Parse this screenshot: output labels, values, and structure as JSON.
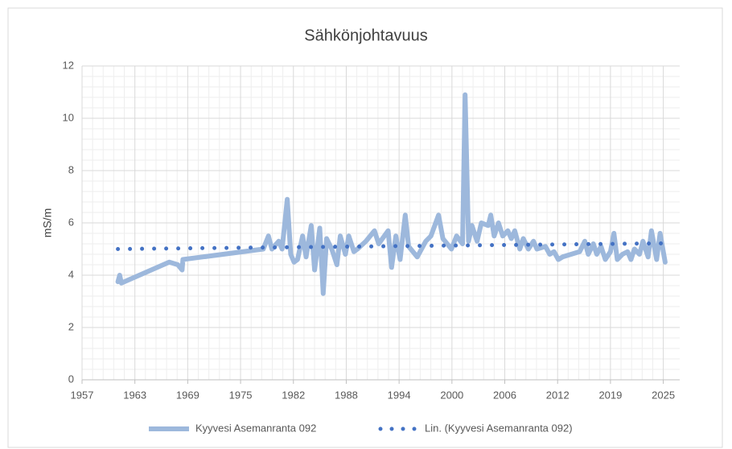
{
  "chart_data": {
    "type": "line",
    "title": "Sähkönjohtavuus",
    "y_label": "mS/m",
    "xlim": [
      1956.8,
      2026.7
    ],
    "ylim": [
      0,
      12
    ],
    "xticks": [
      {
        "value": 1956.8,
        "label": "1957"
      },
      {
        "value": 1962.98,
        "label": "1963"
      },
      {
        "value": 1969.16,
        "label": "1969"
      },
      {
        "value": 1975.34,
        "label": "1975"
      },
      {
        "value": 1981.52,
        "label": "1982"
      },
      {
        "value": 1987.7,
        "label": "1988"
      },
      {
        "value": 1993.88,
        "label": "1994"
      },
      {
        "value": 2000.06,
        "label": "2000"
      },
      {
        "value": 2006.24,
        "label": "2006"
      },
      {
        "value": 2012.42,
        "label": "2012"
      },
      {
        "value": 2018.6,
        "label": "2019"
      },
      {
        "value": 2024.78,
        "label": "2025"
      }
    ],
    "yticks": [
      0,
      2,
      4,
      6,
      8,
      10,
      12
    ],
    "grid": true,
    "legend": "bottom",
    "series": [
      {
        "name": "Kyyvesi Asemanranta 092",
        "color": "#9db8dc",
        "x": [
          1961.0,
          1961.2,
          1961.4,
          1967,
          1968,
          1968.5,
          1968.6,
          1978,
          1978.6,
          1979,
          1979.8,
          1980.2,
          1980.8,
          1981.2,
          1981.6,
          1982,
          1982.6,
          1983,
          1983.6,
          1984,
          1984.6,
          1985,
          1985.4,
          1986,
          1986.6,
          1987,
          1987.6,
          1988,
          1988.6,
          1989,
          1990,
          1991,
          1991.5,
          1992.6,
          1993,
          1993.5,
          1994,
          1994.6,
          1995,
          1996,
          1997,
          1997.6,
          1998.5,
          1999,
          2000,
          2000.6,
          2001.3,
          2001.6,
          2002,
          2002.4,
          2003,
          2003.5,
          2004.3,
          2004.6,
          2005,
          2005.5,
          2006,
          2006.6,
          2007,
          2007.4,
          2008,
          2008.4,
          2009,
          2009.6,
          2010,
          2011,
          2011.5,
          2012,
          2012.5,
          2013,
          2015,
          2015.6,
          2016,
          2016.6,
          2017,
          2017.5,
          2018,
          2018.6,
          2019,
          2019.4,
          2020,
          2020.6,
          2021,
          2021.4,
          2022,
          2022.4,
          2023,
          2023.4,
          2024,
          2024.4,
          2025
        ],
        "values": [
          3.75,
          4.0,
          3.7,
          4.5,
          4.4,
          4.2,
          4.6,
          5.0,
          5.5,
          5.0,
          5.3,
          5.0,
          6.9,
          4.8,
          4.5,
          4.6,
          5.5,
          4.7,
          5.9,
          4.2,
          5.8,
          3.3,
          5.4,
          5.0,
          4.4,
          5.5,
          4.8,
          5.5,
          4.9,
          5.0,
          5.3,
          5.7,
          5.2,
          5.7,
          4.3,
          5.5,
          4.6,
          6.3,
          5.1,
          4.7,
          5.3,
          5.5,
          6.3,
          5.4,
          5.0,
          5.5,
          5.2,
          10.9,
          5.3,
          5.9,
          5.3,
          6.0,
          5.9,
          6.3,
          5.5,
          6.0,
          5.5,
          5.7,
          5.4,
          5.7,
          5.0,
          5.4,
          5.0,
          5.3,
          5.0,
          5.1,
          4.8,
          4.9,
          4.6,
          4.7,
          4.9,
          5.3,
          4.8,
          5.2,
          4.8,
          5.1,
          4.6,
          4.9,
          5.6,
          4.6,
          4.8,
          4.9,
          4.6,
          5.0,
          4.8,
          5.3,
          4.7,
          5.7,
          4.6,
          5.6,
          4.5
        ]
      },
      {
        "name": "Lin. (Kyyvesi Asemanranta 092)",
        "color": "#4472c4",
        "dotted": true,
        "x": [
          1961,
          2025
        ],
        "values": [
          5.0,
          5.22
        ]
      }
    ]
  }
}
